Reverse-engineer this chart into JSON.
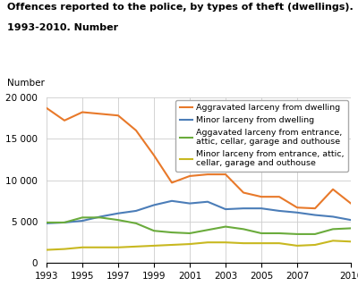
{
  "title_line1": "Offences reported to the police, by types of theft (dwellings).",
  "title_line2": "1993-2010. Number",
  "ylabel": "Number",
  "years": [
    1993,
    1994,
    1995,
    1996,
    1997,
    1998,
    1999,
    2000,
    2001,
    2002,
    2003,
    2004,
    2005,
    2006,
    2007,
    2008,
    2009,
    2010
  ],
  "series": [
    {
      "label": "Aggravated larceny from dwelling",
      "color": "#E8792A",
      "values": [
        18700,
        17200,
        18200,
        18000,
        17800,
        16000,
        13000,
        9700,
        10500,
        10700,
        10700,
        8500,
        8000,
        8000,
        6700,
        6600,
        8900,
        7200
      ]
    },
    {
      "label": "Minor larceny from dwelling",
      "color": "#4B7DB8",
      "values": [
        4800,
        4900,
        5100,
        5600,
        6000,
        6300,
        7000,
        7500,
        7200,
        7400,
        6500,
        6600,
        6600,
        6300,
        6100,
        5800,
        5600,
        5200
      ]
    },
    {
      "label": "Aggavated larceny from entrance,\nattic, cellar, garage and outhouse",
      "color": "#6AAB3C",
      "values": [
        4900,
        4900,
        5500,
        5500,
        5200,
        4800,
        3900,
        3700,
        3600,
        4000,
        4400,
        4100,
        3600,
        3600,
        3500,
        3500,
        4100,
        4200
      ]
    },
    {
      "label": "Minor larceny from entrance, attic,\ncellar, garage and outhouse",
      "color": "#C8B820",
      "values": [
        1600,
        1700,
        1900,
        1900,
        1900,
        2000,
        2100,
        2200,
        2300,
        2500,
        2500,
        2400,
        2400,
        2400,
        2100,
        2200,
        2700,
        2600
      ]
    }
  ],
  "ylim": [
    0,
    20000
  ],
  "yticks": [
    0,
    5000,
    10000,
    15000,
    20000
  ],
  "ytick_labels": [
    "0",
    "5 000",
    "10 000",
    "15 000",
    "20 000"
  ],
  "xticks": [
    1993,
    1995,
    1997,
    1999,
    2001,
    2003,
    2005,
    2007,
    2010
  ],
  "background_color": "#ffffff",
  "grid_color": "#cccccc",
  "title_fontsize": 8.0,
  "label_fontsize": 7.5,
  "tick_fontsize": 7.5,
  "legend_fontsize": 6.8
}
